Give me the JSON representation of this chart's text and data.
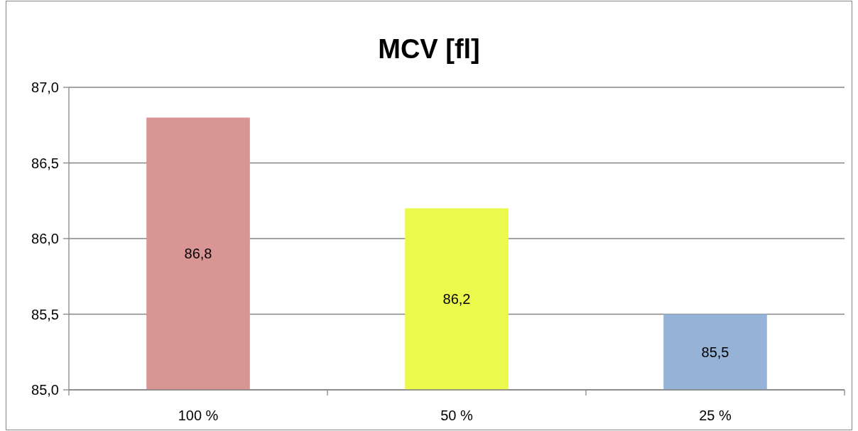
{
  "chart_data": {
    "type": "bar",
    "title": "MCV [fl]",
    "categories": [
      "100 %",
      "50 %",
      "25 %"
    ],
    "values": [
      86.8,
      86.2,
      85.5
    ],
    "colors": [
      "#d99594",
      "#ebf84c",
      "#95b3d7"
    ],
    "value_labels": [
      "86,8",
      "86,2",
      "85,5"
    ],
    "ylim": [
      85,
      87
    ],
    "yticks": [
      {
        "value": 85,
        "label": "85,0"
      },
      {
        "value": 85.5,
        "label": "85,5"
      },
      {
        "value": 86,
        "label": "86,0"
      },
      {
        "value": 86.5,
        "label": "86,5"
      },
      {
        "value": 87,
        "label": "87,0"
      }
    ],
    "grid": "y"
  }
}
